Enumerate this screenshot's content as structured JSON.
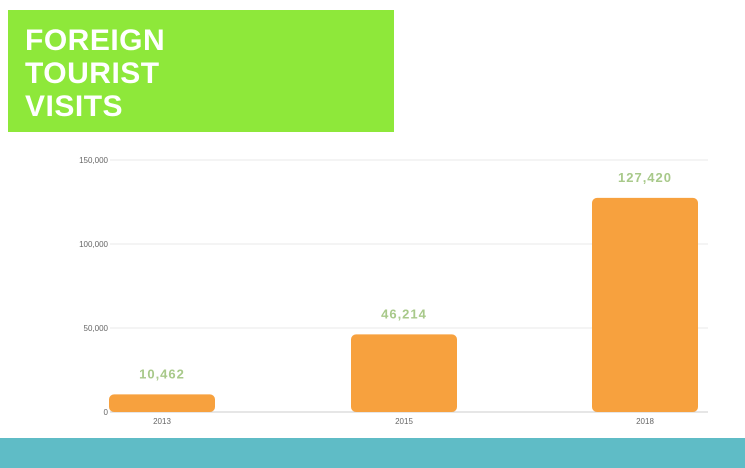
{
  "title_lines": [
    "FOREIGN",
    "TOURIST",
    "VISITS"
  ],
  "colors": {
    "title_bg": "#8ee83a",
    "bar": "#f7a13e",
    "value_label": "#a8c98a",
    "band": "#5fbcc6",
    "grid": "#e8e8e8"
  },
  "chart_data": {
    "type": "bar",
    "categories": [
      "2013",
      "2015",
      "2018"
    ],
    "values": [
      10462,
      46214,
      127420
    ],
    "value_labels": [
      "10,462",
      "46,214",
      "127,420"
    ],
    "yticks": [
      0,
      50000,
      100000,
      150000
    ],
    "ytick_labels": [
      "0",
      "50,000",
      "100,000",
      "150,000"
    ],
    "ylim": [
      0,
      150000
    ],
    "grid": true,
    "title": "",
    "xlabel": "",
    "ylabel": ""
  }
}
